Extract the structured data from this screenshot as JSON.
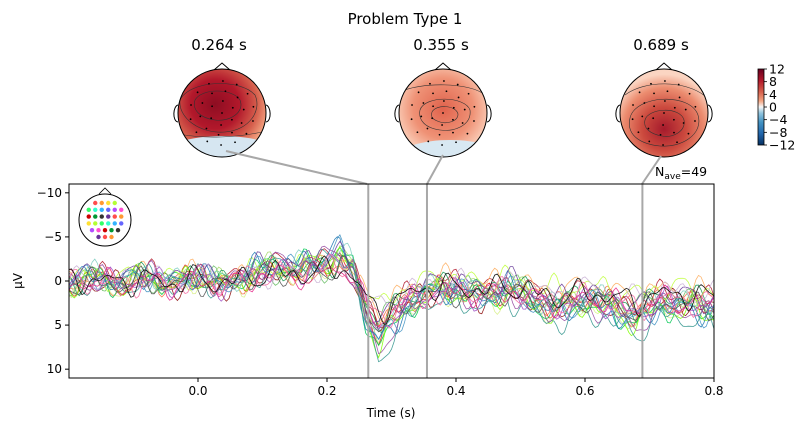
{
  "figure": {
    "title": "Problem Type 1",
    "nave_label": "N",
    "nave_sub": "ave",
    "nave_value": "=49"
  },
  "topomaps": [
    {
      "time_label": "0.264 s",
      "time": 0.264
    },
    {
      "time_label": "0.355 s",
      "time": 0.355
    },
    {
      "time_label": "0.689 s",
      "time": 0.689
    }
  ],
  "colorbar": {
    "ticks": [
      "12",
      "8",
      "4",
      "0",
      "−4",
      "−8",
      "−12"
    ],
    "colors": [
      "#67001f",
      "#b2182b",
      "#d6604d",
      "#f4a582",
      "#fddbc7",
      "#f7f7f7",
      "#d1e5f0",
      "#92c5de",
      "#4393c3",
      "#2166ac",
      "#053061"
    ]
  },
  "chart_data": {
    "type": "line",
    "xlabel": "Time (s)",
    "ylabel": "μV",
    "xlim": [
      -0.2,
      0.8
    ],
    "ylim": [
      -11,
      11
    ],
    "y_inverted": true,
    "x_ticks": [
      "0.0",
      "0.2",
      "0.4",
      "0.6",
      "0.8"
    ],
    "y_ticks": [
      "−10",
      "−5",
      "0",
      "5",
      "10"
    ],
    "grid": false,
    "markers": [
      0.264,
      0.355,
      0.689
    ],
    "x": [
      -0.2,
      -0.16,
      -0.12,
      -0.08,
      -0.04,
      0.0,
      0.04,
      0.08,
      0.12,
      0.16,
      0.2,
      0.22,
      0.24,
      0.26,
      0.28,
      0.3,
      0.32,
      0.34,
      0.36,
      0.4,
      0.44,
      0.48,
      0.52,
      0.56,
      0.6,
      0.64,
      0.68,
      0.72,
      0.76,
      0.8
    ],
    "mean": [
      0.2,
      -0.4,
      0.3,
      -0.5,
      0.4,
      -0.6,
      0.5,
      -0.8,
      -1.6,
      -1.4,
      -2.2,
      -3.0,
      -1.2,
      3.5,
      6.2,
      4.5,
      3.0,
      1.8,
      1.2,
      0.9,
      1.8,
      0.8,
      2.2,
      3.2,
      2.0,
      3.0,
      4.0,
      2.4,
      2.8,
      3.2
    ],
    "series_colors": [
      "#e41a1c",
      "#b2182b",
      "#8c0d0d",
      "#f46d43",
      "#fdae61",
      "#d9ef8b",
      "#a6d96a",
      "#66bd63",
      "#1a9850",
      "#00c853",
      "#7fff00",
      "#c0ff3e",
      "#1f78b4",
      "#4393c3",
      "#80cdc1",
      "#35978f",
      "#6a3d9a",
      "#9e4fc5",
      "#cab2d6",
      "#984ea3",
      "#e7298a",
      "#f768a1",
      "#525252",
      "#000000"
    ],
    "sensor_colors": [
      "#ff4d4d",
      "#ff9933",
      "#ffe033",
      "#b3ff33",
      "#33ff66",
      "#33ffcc",
      "#33b3ff",
      "#6666ff",
      "#b34dff",
      "#ff4dd2",
      "#cc0000",
      "#009933",
      "#333333",
      "#663399"
    ]
  }
}
